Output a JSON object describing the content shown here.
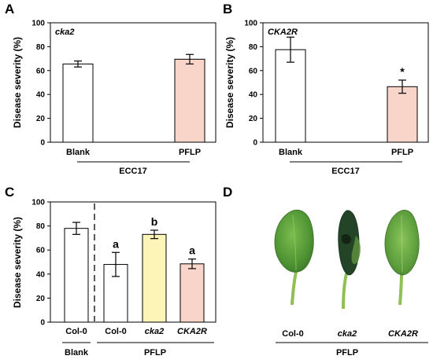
{
  "figure": {
    "panels": [
      {
        "letter": "A",
        "genotype": "cka2",
        "group_label": "ECC17"
      },
      {
        "letter": "B",
        "genotype": "CKA2R",
        "group_label": "ECC17"
      },
      {
        "letter": "C",
        "group_labels": [
          "Blank",
          "PFLP"
        ]
      },
      {
        "letter": "D",
        "group_label": "PFLP",
        "leaf_labels": [
          "Col-0",
          "cka2",
          "CKA2R"
        ]
      }
    ]
  },
  "colors": {
    "white_bar": "#ffffff",
    "pflp_bar": "#f8d5c8",
    "cka2_bar": "#fdf4b8",
    "outline": "#000000",
    "leaf_green": "#5a9a3a",
    "leaf_dark": "#1f3a22"
  },
  "chart_data": [
    {
      "type": "bar",
      "panel": "A",
      "ylabel": "Disease severity (%)",
      "ylim": [
        0,
        100
      ],
      "yticks": [
        0,
        20,
        40,
        60,
        80,
        100
      ],
      "categories": [
        "Blank",
        "PFLP"
      ],
      "values": [
        65.5,
        69.5
      ],
      "errors": [
        2.5,
        4
      ],
      "significance": [
        "",
        ""
      ],
      "group_label": "ECC17",
      "bar_colors": [
        "#ffffff",
        "#f8d5c8"
      ]
    },
    {
      "type": "bar",
      "panel": "B",
      "ylabel": "Disease severity (%)",
      "ylim": [
        0,
        100
      ],
      "yticks": [
        0,
        20,
        40,
        60,
        80,
        100
      ],
      "categories": [
        "Blank",
        "PFLP"
      ],
      "values": [
        77.5,
        46.5
      ],
      "errors": [
        10.5,
        5.5
      ],
      "significance": [
        "",
        "*"
      ],
      "group_label": "ECC17",
      "bar_colors": [
        "#ffffff",
        "#f8d5c8"
      ]
    },
    {
      "type": "bar",
      "panel": "C",
      "ylabel": "Disease severity (%)",
      "ylim": [
        0,
        100
      ],
      "yticks": [
        0,
        20,
        40,
        60,
        80,
        100
      ],
      "categories": [
        "Col-0",
        "Col-0",
        "cka2",
        "CKA2R"
      ],
      "italic": [
        false,
        false,
        true,
        true
      ],
      "values": [
        78,
        48,
        73,
        48.5
      ],
      "errors": [
        5,
        10,
        3.5,
        4
      ],
      "significance": [
        "",
        "a",
        "b",
        "a"
      ],
      "groups": [
        {
          "label": "Blank",
          "count": 1
        },
        {
          "label": "PFLP",
          "count": 3
        }
      ],
      "bar_colors": [
        "#ffffff",
        "#ffffff",
        "#fdf4b8",
        "#f8d5c8"
      ]
    }
  ]
}
